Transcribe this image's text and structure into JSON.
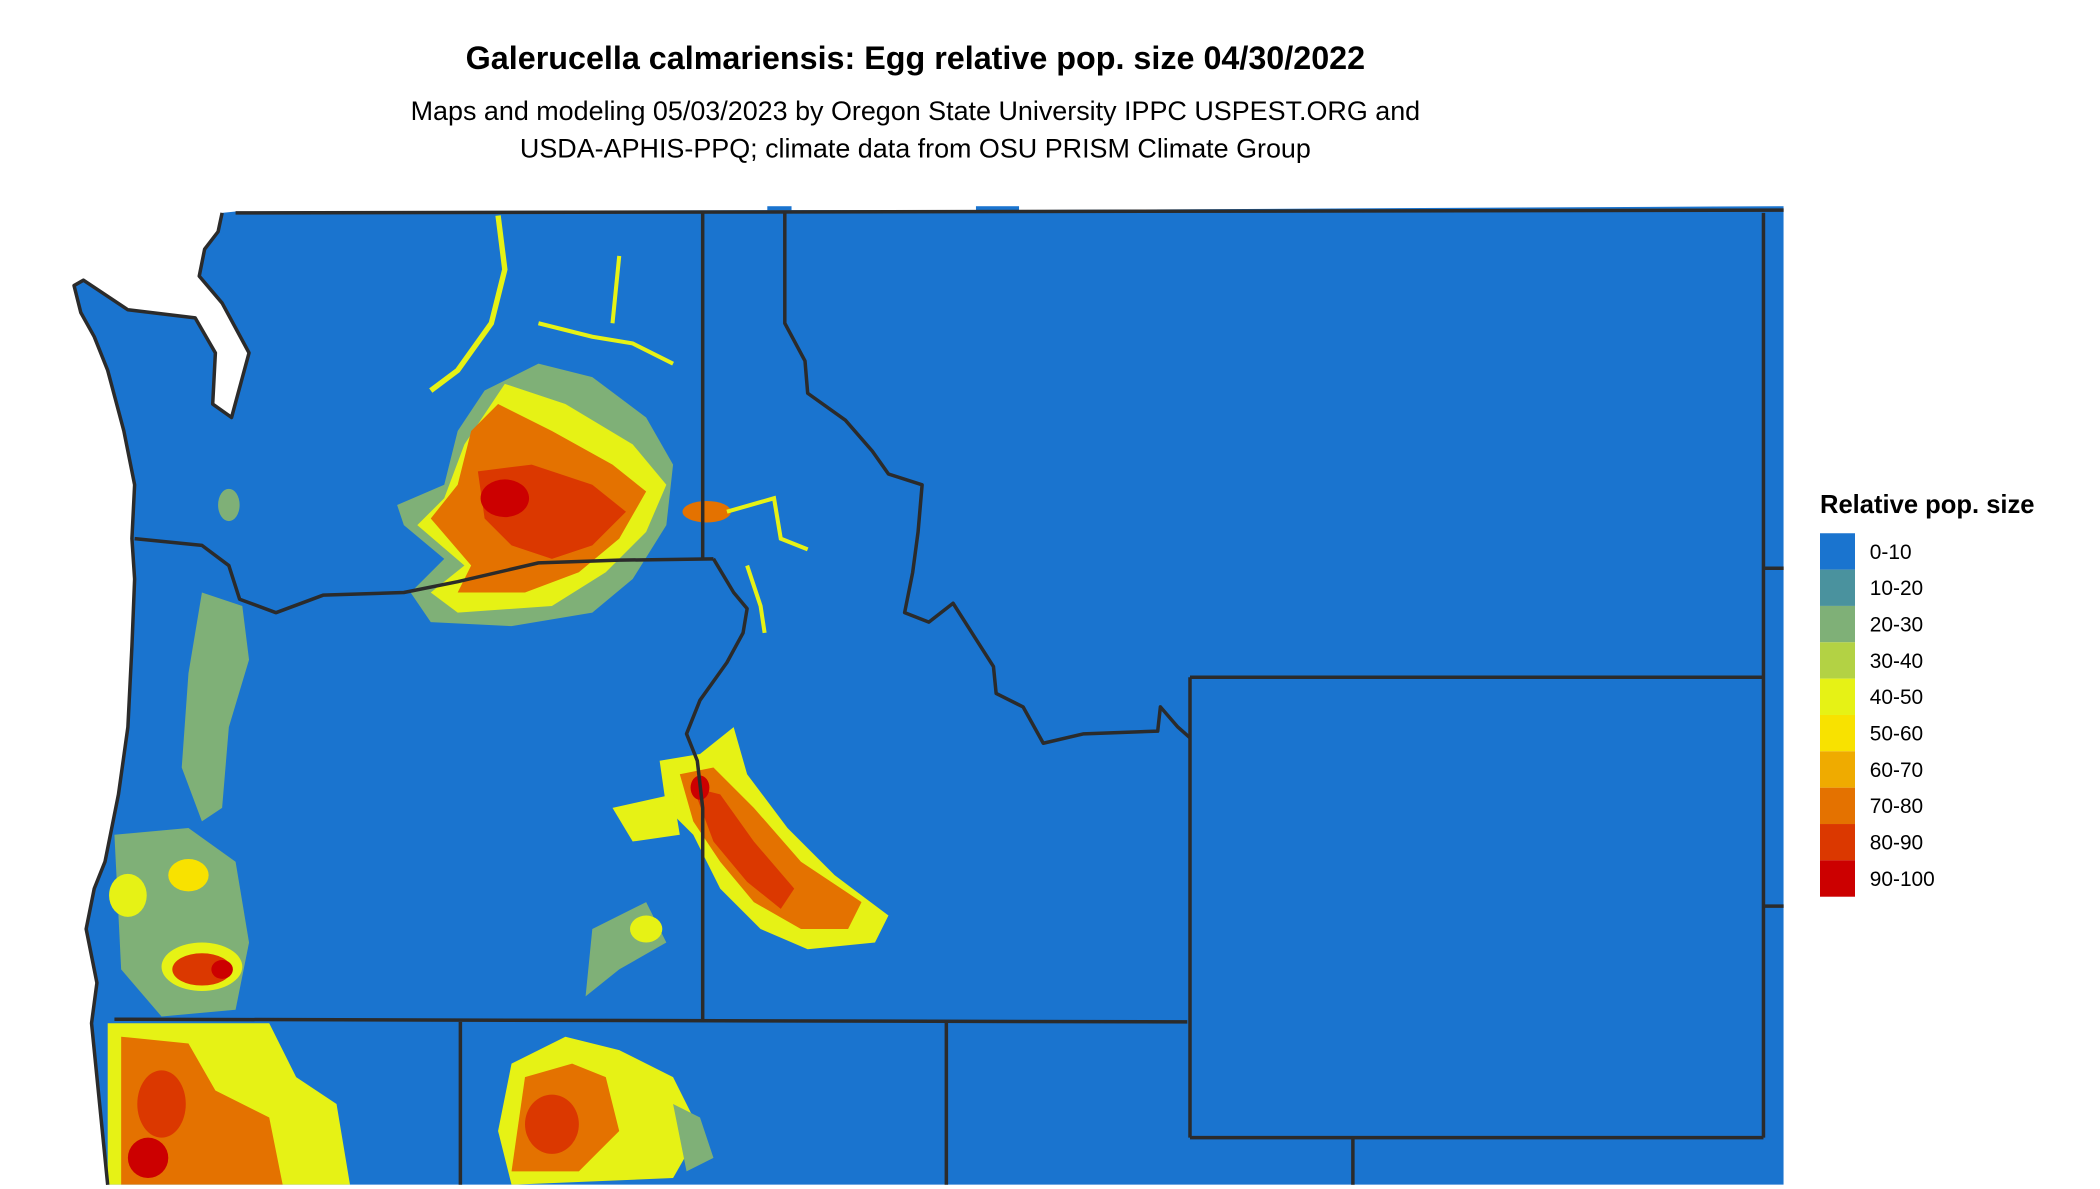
{
  "title": "Galerucella calmariensis: Egg relative pop. size 04/30/2022",
  "subtitle_line1": "Maps and modeling 05/03/2023 by Oregon State University IPPC USPEST.ORG and",
  "subtitle_line2": "USDA-APHIS-PPQ; climate data from OSU PRISM Climate Group",
  "legend": {
    "title": "Relative pop. size",
    "items": [
      {
        "label": "0-10",
        "color": "#1a74cf"
      },
      {
        "label": "10-20",
        "color": "#4a929e"
      },
      {
        "label": "20-30",
        "color": "#7fb077"
      },
      {
        "label": "30-40",
        "color": "#b3d244"
      },
      {
        "label": "40-50",
        "color": "#e6f215"
      },
      {
        "label": "50-60",
        "color": "#f8e200"
      },
      {
        "label": "60-70",
        "color": "#efab00"
      },
      {
        "label": "70-80",
        "color": "#e47200"
      },
      {
        "label": "80-90",
        "color": "#db3800"
      },
      {
        "label": "90-100",
        "color": "#cc0000"
      }
    ]
  },
  "map": {
    "background_class_color": "#1a74cf",
    "border_color": "#2b2b2b"
  }
}
